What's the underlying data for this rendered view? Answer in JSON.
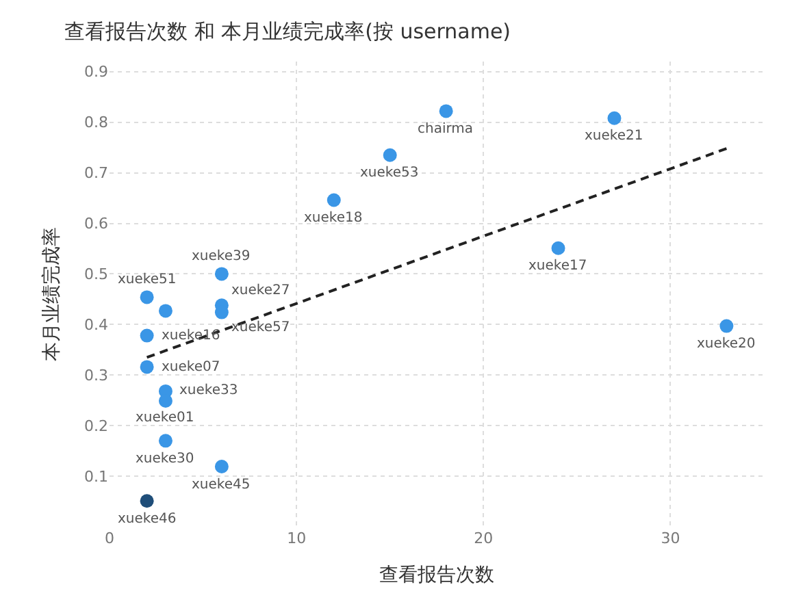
{
  "chart_data": {
    "type": "scatter",
    "title": "查看报告次数 和 本月业绩完成率(按 username)",
    "xlabel": "查看报告次数",
    "ylabel": "本月业绩完成率",
    "x": [
      2,
      3,
      6,
      6,
      6,
      2,
      2,
      3,
      3,
      3,
      6,
      2,
      12,
      15,
      18,
      27,
      24,
      33
    ],
    "series": [
      {
        "color": "#3a96e6",
        "values": [
          0.454,
          0.427,
          0.5,
          0.438,
          0.424,
          0.378,
          0.316,
          0.268,
          0.249,
          0.17,
          0.119,
          0.051,
          0.646,
          0.735,
          0.822,
          0.808,
          0.551,
          0.397
        ],
        "colors": [
          "#3a96e6",
          "#3a96e6",
          "#3a96e6",
          "#3a96e6",
          "#3a96e6",
          "#3a96e6",
          "#3a96e6",
          "#3a96e6",
          "#3a96e6",
          "#3a96e6",
          "#3a96e6",
          "#1f4e79",
          "#3a96e6",
          "#3a96e6",
          "#3a96e6",
          "#3a96e6",
          "#3a96e6",
          "#3a96e6"
        ]
      },
      {
        "type": "line",
        "color": "#222222",
        "line_style": "dashed",
        "marker": "none",
        "x": [
          2,
          33
        ],
        "values": [
          0.335,
          0.748
        ]
      }
    ],
    "annotations": [
      {
        "text": "xueke51",
        "x": 2,
        "y": 0.454
      },
      {
        "text": "xueke39",
        "x": 6,
        "y": 0.5
      },
      {
        "text": "xueke27",
        "x": 6,
        "y": 0.438
      },
      {
        "text": "xueke57",
        "x": 6,
        "y": 0.424
      },
      {
        "text": "xueke16",
        "x": 2,
        "y": 0.378
      },
      {
        "text": "xueke07",
        "x": 2,
        "y": 0.316
      },
      {
        "text": "xueke33",
        "x": 3,
        "y": 0.268
      },
      {
        "text": "xueke01",
        "x": 3,
        "y": 0.249
      },
      {
        "text": "xueke30",
        "x": 3,
        "y": 0.17
      },
      {
        "text": "xueke45",
        "x": 6,
        "y": 0.119
      },
      {
        "text": "xueke46",
        "x": 2,
        "y": 0.051
      },
      {
        "text": "xueke18",
        "x": 12,
        "y": 0.646
      },
      {
        "text": "xueke53",
        "x": 15,
        "y": 0.735
      },
      {
        "text": "chairma",
        "x": 18,
        "y": 0.822
      },
      {
        "text": "xueke21",
        "x": 27,
        "y": 0.808
      },
      {
        "text": "xueke17",
        "x": 24,
        "y": 0.551
      },
      {
        "text": "xueke20",
        "x": 33,
        "y": 0.397
      }
    ],
    "xlim": [
      0,
      35
    ],
    "xticks": [
      0,
      10,
      20,
      30
    ],
    "ylim": [
      0,
      0.92
    ],
    "yticks": [
      0.1,
      0.2,
      0.3,
      0.4,
      0.5,
      0.6,
      0.7,
      0.8,
      0.9
    ],
    "grid": true
  }
}
